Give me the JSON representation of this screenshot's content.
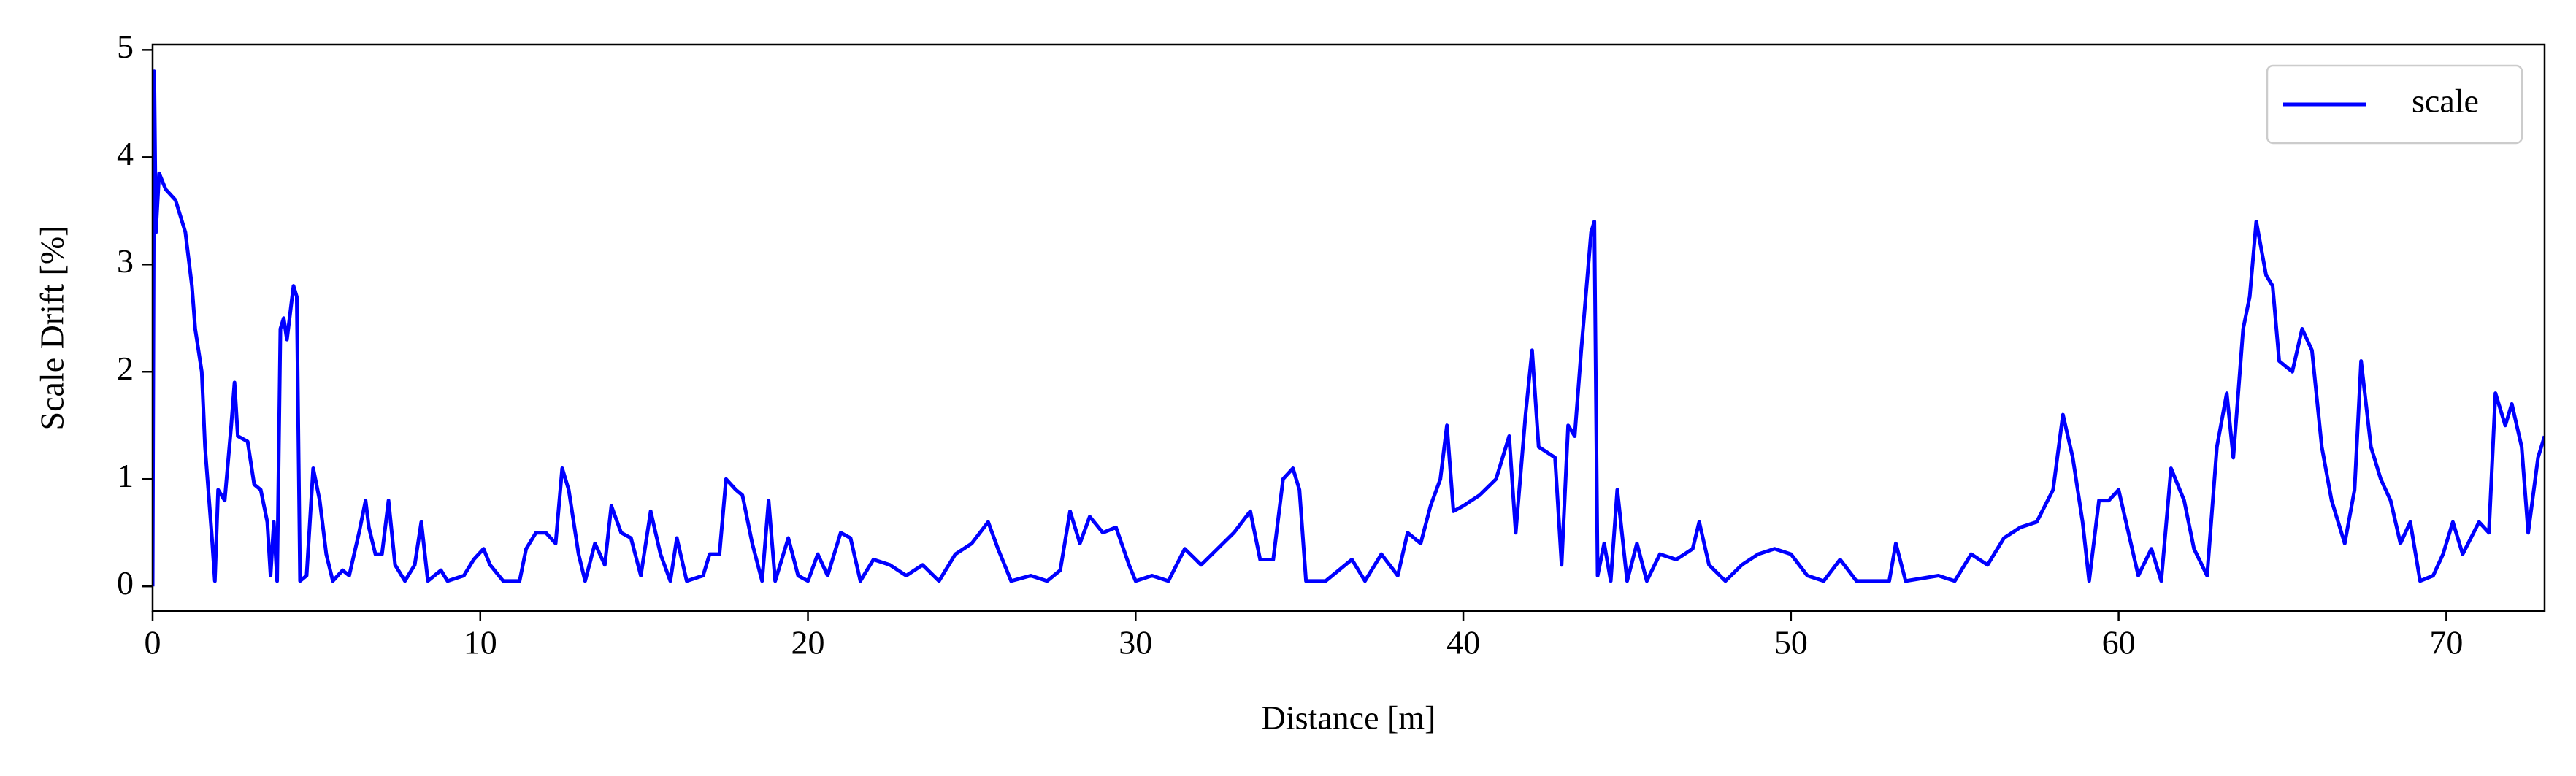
{
  "chart_data": {
    "type": "line",
    "x_label": "Distance [m]",
    "y_label": "Scale Drift [%]",
    "xlim": [
      0,
      73
    ],
    "ylim": [
      -0.23,
      5.05
    ],
    "xticks": [
      0,
      10,
      20,
      30,
      40,
      50,
      60,
      70
    ],
    "yticks": [
      0,
      1,
      2,
      3,
      4,
      5
    ],
    "legend": "upper right",
    "series": [
      {
        "name": "scale",
        "color": "#0000ff",
        "x": [
          0,
          0.05,
          0.1,
          0.2,
          0.4,
          0.7,
          1.0,
          1.2,
          1.3,
          1.5,
          1.6,
          1.8,
          1.9,
          2.0,
          2.2,
          2.4,
          2.5,
          2.6,
          2.9,
          3.1,
          3.3,
          3.5,
          3.6,
          3.7,
          3.8,
          3.9,
          4.0,
          4.1,
          4.3,
          4.4,
          4.5,
          4.7,
          4.9,
          5.1,
          5.3,
          5.5,
          5.8,
          6.0,
          6.3,
          6.5,
          6.6,
          6.8,
          7.0,
          7.2,
          7.4,
          7.7,
          8.0,
          8.2,
          8.4,
          8.8,
          9.0,
          9.5,
          9.8,
          10.1,
          10.3,
          10.7,
          11.2,
          11.4,
          11.7,
          12.0,
          12.3,
          12.5,
          12.7,
          13.0,
          13.2,
          13.5,
          13.8,
          14.0,
          14.3,
          14.6,
          14.9,
          15.2,
          15.5,
          15.8,
          16.0,
          16.3,
          16.8,
          17.0,
          17.3,
          17.5,
          17.8,
          18.0,
          18.3,
          18.6,
          18.8,
          19.0,
          19.4,
          19.7,
          20.0,
          20.3,
          20.6,
          21.0,
          21.3,
          21.6,
          22.0,
          22.5,
          23.0,
          23.5,
          24.0,
          24.5,
          25.0,
          25.5,
          25.8,
          26.2,
          26.8,
          27.3,
          27.7,
          28.0,
          28.3,
          28.6,
          29.0,
          29.4,
          29.8,
          30.0,
          30.5,
          31.0,
          31.5,
          32.0,
          32.5,
          33.0,
          33.5,
          33.8,
          34.2,
          34.5,
          34.8,
          35.0,
          35.2,
          35.8,
          36.2,
          36.6,
          37.0,
          37.5,
          38.0,
          38.3,
          38.7,
          39.0,
          39.3,
          39.5,
          39.7,
          40.0,
          40.5,
          41.0,
          41.4,
          41.6,
          41.9,
          42.1,
          42.3,
          42.8,
          43.0,
          43.2,
          43.4,
          43.6,
          43.9,
          44.0,
          44.1,
          44.3,
          44.5,
          44.7,
          45.0,
          45.3,
          45.6,
          46.0,
          46.5,
          47.0,
          47.2,
          47.5,
          48.0,
          48.5,
          49.0,
          49.5,
          50.0,
          50.5,
          51.0,
          51.5,
          52.0,
          53.0,
          53.2,
          53.5,
          54.5,
          55.0,
          55.5,
          56.0,
          56.5,
          57.0,
          57.5,
          58.0,
          58.3,
          58.6,
          58.9,
          59.1,
          59.4,
          59.7,
          60.0,
          60.3,
          60.6,
          61.0,
          61.3,
          61.6,
          62.0,
          62.3,
          62.7,
          63.0,
          63.3,
          63.5,
          63.8,
          64.0,
          64.2,
          64.5,
          64.7,
          64.9,
          65.3,
          65.6,
          65.9,
          66.2,
          66.5,
          66.9,
          67.2,
          67.4,
          67.7,
          68.0,
          68.3,
          68.6,
          68.9,
          69.2,
          69.6,
          69.9,
          70.2,
          70.5,
          71.0,
          71.3,
          71.5,
          71.8,
          72.0,
          72.3,
          72.5,
          72.8,
          73.0
        ],
        "values": [
          0,
          4.8,
          3.3,
          3.85,
          3.7,
          3.6,
          3.3,
          2.8,
          2.4,
          2.0,
          1.3,
          0.5,
          0.05,
          0.9,
          0.8,
          1.5,
          1.9,
          1.4,
          1.35,
          0.95,
          0.9,
          0.6,
          0.1,
          0.6,
          0.05,
          2.4,
          2.5,
          2.3,
          2.8,
          2.7,
          0.05,
          0.1,
          1.1,
          0.8,
          0.3,
          0.05,
          0.15,
          0.1,
          0.5,
          0.8,
          0.55,
          0.3,
          0.3,
          0.8,
          0.2,
          0.05,
          0.2,
          0.6,
          0.05,
          0.15,
          0.05,
          0.1,
          0.25,
          0.35,
          0.2,
          0.05,
          0.05,
          0.35,
          0.5,
          0.5,
          0.4,
          1.1,
          0.9,
          0.3,
          0.05,
          0.4,
          0.2,
          0.75,
          0.5,
          0.45,
          0.1,
          0.7,
          0.3,
          0.05,
          0.45,
          0.05,
          0.1,
          0.3,
          0.3,
          1.0,
          0.9,
          0.85,
          0.4,
          0.05,
          0.8,
          0.05,
          0.45,
          0.1,
          0.05,
          0.3,
          0.1,
          0.5,
          0.45,
          0.05,
          0.25,
          0.2,
          0.1,
          0.2,
          0.05,
          0.3,
          0.4,
          0.6,
          0.35,
          0.05,
          0.1,
          0.05,
          0.15,
          0.7,
          0.4,
          0.65,
          0.5,
          0.55,
          0.2,
          0.05,
          0.1,
          0.05,
          0.35,
          0.2,
          0.35,
          0.5,
          0.7,
          0.25,
          0.25,
          1.0,
          1.1,
          0.9,
          0.05,
          0.05,
          0.15,
          0.25,
          0.05,
          0.3,
          0.1,
          0.5,
          0.4,
          0.75,
          1.0,
          1.5,
          0.7,
          0.75,
          0.85,
          1.0,
          1.4,
          0.5,
          1.6,
          2.2,
          1.3,
          1.2,
          0.2,
          1.5,
          1.4,
          2.2,
          3.3,
          3.4,
          0.1,
          0.4,
          0.05,
          0.9,
          0.05,
          0.4,
          0.05,
          0.3,
          0.25,
          0.35,
          0.6,
          0.2,
          0.05,
          0.2,
          0.3,
          0.35,
          0.3,
          0.1,
          0.05,
          0.25,
          0.05,
          0.05,
          0.4,
          0.05,
          0.1,
          0.05,
          0.3,
          0.2,
          0.45,
          0.55,
          0.6,
          0.9,
          1.6,
          1.2,
          0.6,
          0.05,
          0.8,
          0.8,
          0.9,
          0.5,
          0.1,
          0.35,
          0.05,
          1.1,
          0.8,
          0.35,
          0.1,
          1.3,
          1.8,
          1.2,
          2.4,
          2.7,
          3.4,
          2.9,
          2.8,
          2.1,
          2.0,
          2.4,
          2.2,
          1.3,
          0.8,
          0.4,
          0.9,
          2.1,
          1.3,
          1.0,
          0.8,
          0.4,
          0.6,
          0.05,
          0.1,
          0.3,
          0.6,
          0.3,
          0.6,
          0.5,
          1.8,
          1.5,
          1.7,
          1.3,
          0.5,
          1.2,
          1.4
        ]
      }
    ]
  }
}
